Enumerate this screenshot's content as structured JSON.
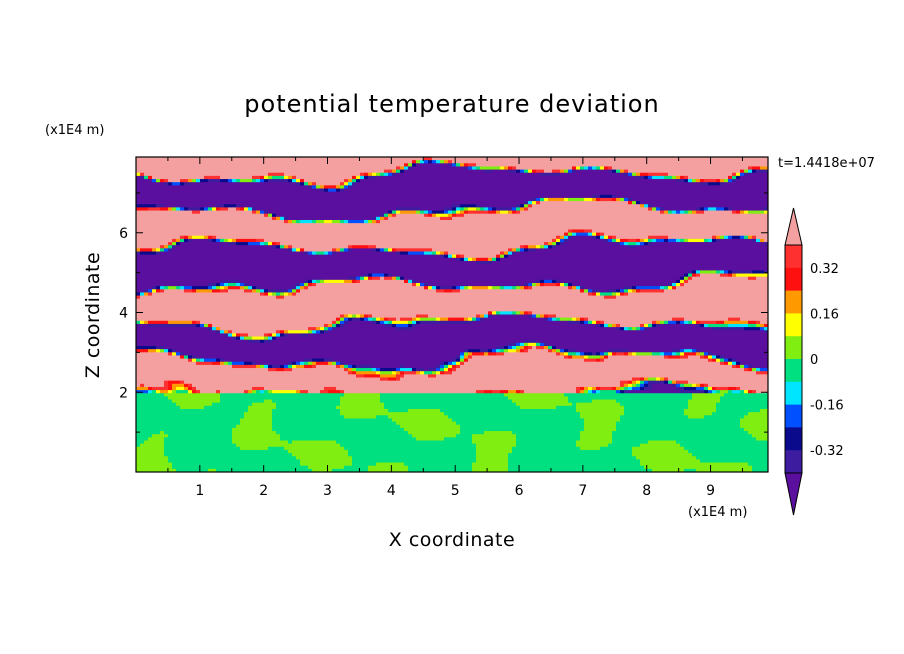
{
  "chart_data": {
    "type": "heatmap",
    "title": "potential temperature deviation",
    "xlabel": "X coordinate",
    "ylabel": "Z coordinate",
    "x_unit_label": "(x1E4 m)",
    "y_unit_label": "(x1E4 m)",
    "time_label": "t=1.4418e+07",
    "xlim": [
      0,
      9.9
    ],
    "ylim": [
      0,
      7.9
    ],
    "x_ticks": [
      "1",
      "2",
      "3",
      "4",
      "5",
      "6",
      "7",
      "8",
      "9"
    ],
    "x_tick_values": [
      1,
      2,
      3,
      4,
      5,
      6,
      7,
      8,
      9
    ],
    "y_ticks": [
      "2",
      "4",
      "6"
    ],
    "y_tick_values": [
      2,
      4,
      6
    ],
    "grid": false,
    "mixed_layer_top": 2.0,
    "stratified_layer_top": 7.9,
    "colorbar": {
      "placement": "right",
      "extend": "both",
      "ticks": [
        "0.32",
        "0.16",
        "0",
        "-0.16",
        "-0.32"
      ],
      "levels": [
        -0.4,
        -0.32,
        -0.24,
        -0.16,
        -0.08,
        0,
        0.08,
        0.16,
        0.24,
        0.32,
        0.4
      ],
      "colors": [
        "#5a0f9e",
        "#3d1ca0",
        "#0a0a8c",
        "#0050ff",
        "#00e5ff",
        "#00e080",
        "#80ee10",
        "#ffff00",
        "#ff9900",
        "#ff1010",
        "#ff3030",
        "#f5a0a0"
      ]
    }
  }
}
